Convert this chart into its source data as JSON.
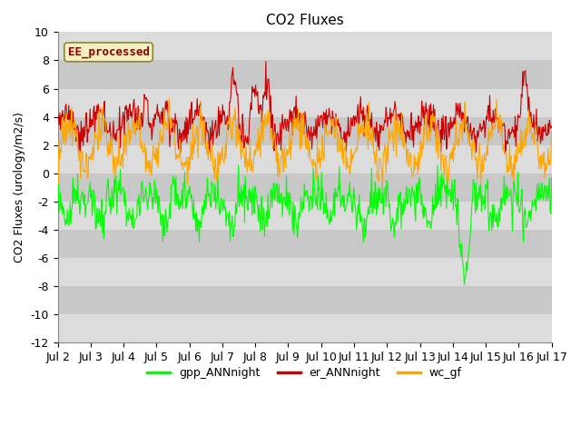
{
  "title": "CO2 Fluxes",
  "ylabel": "CO2 Fluxes (urology/m2/s)",
  "xlabel": "",
  "ylim": [
    -12,
    10
  ],
  "yticks": [
    -12,
    -10,
    -8,
    -6,
    -4,
    -2,
    0,
    2,
    4,
    6,
    8,
    10
  ],
  "xtick_labels": [
    "Jul 2",
    "Jul 3",
    "Jul 4",
    "Jul 5",
    "Jul 6",
    "Jul 7",
    "Jul 8",
    "Jul 9",
    "Jul 10",
    "Jul 11",
    "Jul 12",
    "Jul 13",
    "Jul 14",
    "Jul 15",
    "Jul 16",
    "Jul 17"
  ],
  "n_points": 720,
  "gpp_color": "#00FF00",
  "er_color": "#CC0000",
  "wc_color": "#FFA500",
  "plot_bg_color": "#DCDCDC",
  "band_light": "#DCDCDC",
  "band_dark": "#C8C8C8",
  "legend_label": "EE_processed",
  "legend_text_color": "#880000",
  "legend_box_facecolor": "#F5F0C0",
  "legend_box_edgecolor": "#888840",
  "series_labels": [
    "gpp_ANNnight",
    "er_ANNnight",
    "wc_gf"
  ],
  "linewidth": 0.8,
  "title_fontsize": 11,
  "tick_fontsize": 9,
  "ylabel_fontsize": 9
}
